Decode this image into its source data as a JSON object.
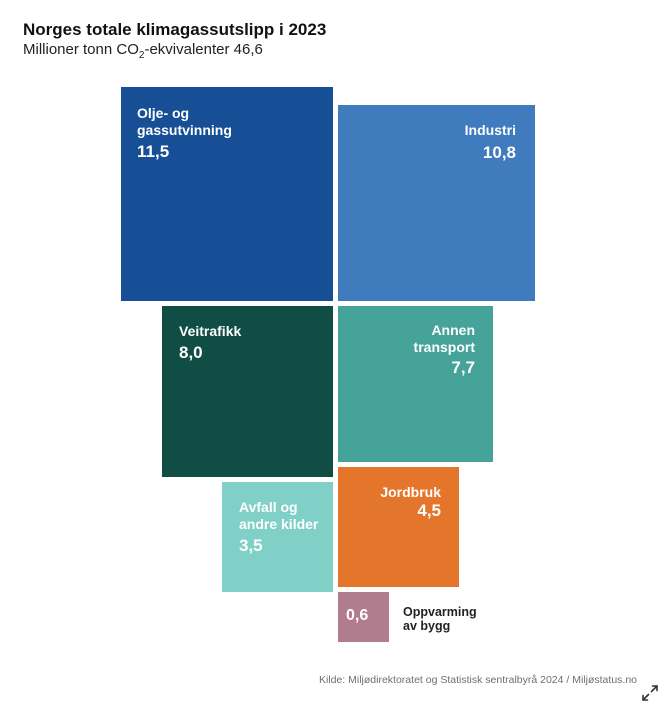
{
  "chart_data": {
    "type": "treemap",
    "title": "Norges totale klimagassutslipp i 2023",
    "subtitle_prefix": "Millioner tonn CO",
    "subtitle_sub": "2",
    "subtitle_suffix": "-ekvivalenter 46,6",
    "total": 46.6,
    "series": [
      {
        "name": "Olje- og gassutvinning",
        "value": 11.5,
        "value_label": "11,5",
        "color": "#174f96"
      },
      {
        "name": "Industri",
        "value": 10.8,
        "value_label": "10,8",
        "color": "#3f7bbd"
      },
      {
        "name": "Veitrafikk",
        "value": 8.0,
        "value_label": "8,0",
        "color": "#0f4d45"
      },
      {
        "name": "Annen transport",
        "value": 7.7,
        "value_label": "7,7",
        "color": "#45a39a"
      },
      {
        "name": "Avfall og andre kilder",
        "value": 3.5,
        "value_label": "3,5",
        "color": "#80d0c7"
      },
      {
        "name": "Jordbruk",
        "value": 4.5,
        "value_label": "4,5",
        "color": "#e4762c"
      },
      {
        "name": "Oppvarming av bygg",
        "value": 0.6,
        "value_label": "0,6",
        "color": "#b17d8e"
      }
    ],
    "source": "Kilde: Miljødirektoratet og Statistisk sentralbyrå 2024 / Miljøstatus.no"
  }
}
